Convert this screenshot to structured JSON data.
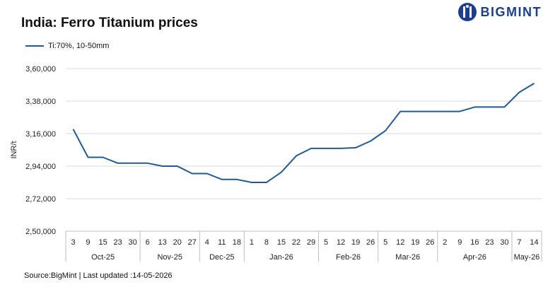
{
  "header": {
    "title": "India: Ferro Titanium prices"
  },
  "brand": {
    "name": "BIGMINT",
    "icon": "bigmint-logo-icon",
    "color": "#1a3f8f"
  },
  "footer": {
    "source": "Source:BigMint | Last updated :14-05-2026"
  },
  "chart_data": {
    "type": "line",
    "title": "India: Ferro Titanium prices",
    "ylabel": "INR/t",
    "xlabel": "",
    "ylim": [
      250000,
      360000
    ],
    "yticks": [
      250000,
      272000,
      294000,
      316000,
      338000,
      360000
    ],
    "ytick_labels": [
      "2,50,000",
      "2,72,000",
      "2,94,000",
      "3,16,000",
      "3,38,000",
      "3,60,000"
    ],
    "grid": true,
    "legend_position": "top-left",
    "categories": [
      "3",
      "9",
      "15",
      "23",
      "30",
      "6",
      "13",
      "20",
      "27",
      "4",
      "11",
      "18",
      "1",
      "8",
      "15",
      "22",
      "29",
      "5",
      "12",
      "19",
      "26",
      "5",
      "12",
      "19",
      "26",
      "2",
      "9",
      "16",
      "23",
      "30",
      "7",
      "14"
    ],
    "months": [
      {
        "label": "Oct-25",
        "count": 5
      },
      {
        "label": "Nov-25",
        "count": 4
      },
      {
        "label": "Dec-25",
        "count": 3
      },
      {
        "label": "Jan-26",
        "count": 5
      },
      {
        "label": "Feb-26",
        "count": 4
      },
      {
        "label": "Mar-26",
        "count": 4
      },
      {
        "label": "Apr-26",
        "count": 5
      },
      {
        "label": "May-26",
        "count": 2
      }
    ],
    "series": [
      {
        "name": "Ti:70%, 10-50mm",
        "color": "#1f5b9b",
        "values": [
          319000,
          300000,
          300000,
          296000,
          296000,
          296000,
          294000,
          294000,
          289000,
          289000,
          285000,
          285000,
          283000,
          283000,
          290000,
          301000,
          306000,
          306000,
          306000,
          306500,
          311000,
          318000,
          331000,
          331000,
          331000,
          331000,
          331000,
          334000,
          334000,
          334000,
          344000,
          350000
        ]
      }
    ]
  }
}
